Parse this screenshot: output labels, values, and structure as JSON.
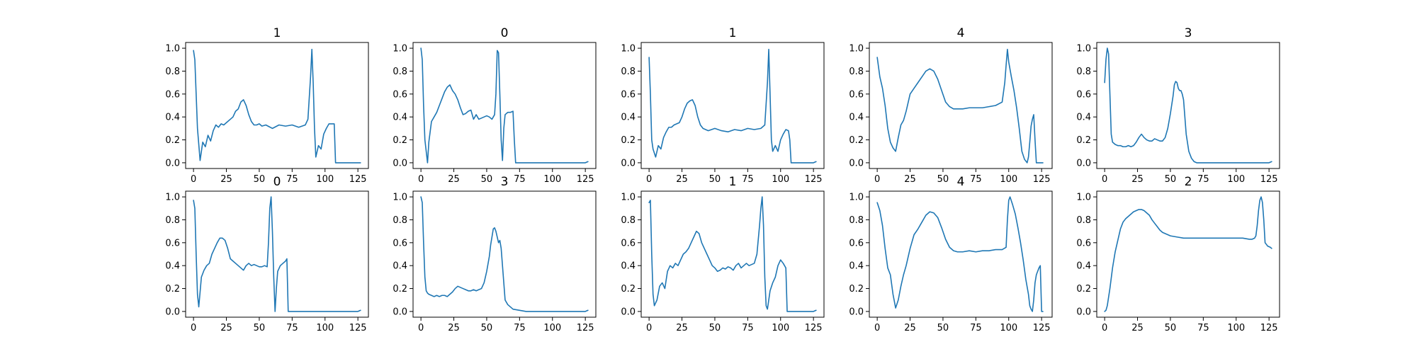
{
  "chart_data": {
    "type": "line",
    "grid": false,
    "line_color": "#1f77b4",
    "xlim": [
      -6,
      133
    ],
    "ylim": [
      -0.05,
      1.05
    ],
    "x_ticks": [
      0,
      25,
      50,
      75,
      100,
      125
    ],
    "y_ticks": [
      0.0,
      0.2,
      0.4,
      0.6,
      0.8,
      1.0
    ],
    "x_tick_labels": [
      "0",
      "25",
      "50",
      "75",
      "100",
      "125"
    ],
    "y_tick_labels": [
      "0.0",
      "0.2",
      "0.4",
      "0.6",
      "0.8",
      "1.0"
    ],
    "panels": [
      {
        "title": "1",
        "x": [
          0,
          1,
          3,
          5,
          7,
          9,
          11,
          13,
          15,
          17,
          19,
          21,
          23,
          25,
          28,
          30,
          32,
          34,
          36,
          38,
          40,
          42,
          44,
          46,
          48,
          50,
          52,
          55,
          60,
          65,
          70,
          75,
          80,
          85,
          87,
          89,
          90,
          91,
          92,
          93,
          95,
          97,
          99,
          101,
          103,
          105,
          107,
          108,
          110,
          115,
          120,
          125,
          127
        ],
        "y": [
          0.98,
          0.9,
          0.3,
          0.02,
          0.18,
          0.14,
          0.24,
          0.19,
          0.28,
          0.33,
          0.31,
          0.34,
          0.33,
          0.35,
          0.38,
          0.4,
          0.45,
          0.47,
          0.53,
          0.55,
          0.5,
          0.42,
          0.36,
          0.33,
          0.33,
          0.34,
          0.32,
          0.33,
          0.3,
          0.33,
          0.32,
          0.33,
          0.31,
          0.33,
          0.38,
          0.75,
          0.99,
          0.7,
          0.3,
          0.05,
          0.15,
          0.12,
          0.25,
          0.3,
          0.34,
          0.34,
          0.34,
          0.0,
          0.0,
          0.0,
          0.0,
          0.0,
          0.0
        ]
      },
      {
        "title": "0",
        "x": [
          0,
          1,
          2,
          3,
          5,
          6,
          8,
          10,
          12,
          14,
          16,
          18,
          20,
          22,
          24,
          26,
          28,
          30,
          32,
          34,
          36,
          38,
          40,
          42,
          44,
          46,
          48,
          50,
          52,
          54,
          56,
          57,
          58,
          59,
          60,
          61,
          62,
          63,
          64,
          66,
          68,
          70,
          71,
          72,
          75,
          80,
          90,
          100,
          110,
          120,
          125,
          127
        ],
        "y": [
          1.0,
          0.9,
          0.5,
          0.2,
          0.0,
          0.18,
          0.36,
          0.4,
          0.44,
          0.5,
          0.56,
          0.62,
          0.66,
          0.68,
          0.63,
          0.6,
          0.55,
          0.48,
          0.42,
          0.43,
          0.45,
          0.46,
          0.38,
          0.42,
          0.38,
          0.39,
          0.4,
          0.41,
          0.4,
          0.38,
          0.42,
          0.6,
          0.98,
          0.96,
          0.6,
          0.2,
          0.02,
          0.3,
          0.42,
          0.44,
          0.44,
          0.45,
          0.2,
          0.0,
          0.0,
          0.0,
          0.0,
          0.0,
          0.0,
          0.0,
          0.0,
          0.01
        ]
      },
      {
        "title": "1",
        "x": [
          0,
          1,
          2,
          3,
          5,
          7,
          9,
          11,
          13,
          15,
          17,
          19,
          21,
          23,
          25,
          27,
          29,
          31,
          33,
          35,
          37,
          39,
          41,
          43,
          45,
          50,
          55,
          60,
          65,
          70,
          75,
          80,
          85,
          88,
          90,
          91,
          92,
          93,
          94,
          96,
          98,
          100,
          102,
          104,
          106,
          107,
          108,
          110,
          115,
          120,
          125,
          127
        ],
        "y": [
          0.92,
          0.6,
          0.2,
          0.12,
          0.05,
          0.15,
          0.12,
          0.22,
          0.27,
          0.31,
          0.31,
          0.33,
          0.34,
          0.35,
          0.4,
          0.47,
          0.52,
          0.54,
          0.55,
          0.5,
          0.4,
          0.33,
          0.3,
          0.29,
          0.28,
          0.3,
          0.28,
          0.27,
          0.29,
          0.28,
          0.3,
          0.29,
          0.3,
          0.33,
          0.7,
          0.99,
          0.6,
          0.2,
          0.1,
          0.15,
          0.1,
          0.2,
          0.25,
          0.29,
          0.28,
          0.2,
          0.0,
          0.0,
          0.0,
          0.0,
          0.0,
          0.01
        ]
      },
      {
        "title": "4",
        "x": [
          0,
          2,
          4,
          6,
          8,
          10,
          12,
          14,
          16,
          18,
          20,
          22,
          25,
          28,
          31,
          34,
          37,
          40,
          43,
          46,
          49,
          52,
          55,
          58,
          61,
          65,
          70,
          75,
          80,
          85,
          90,
          95,
          97,
          98,
          99,
          100,
          102,
          104,
          106,
          108,
          110,
          112,
          114,
          115,
          116,
          117,
          118,
          119,
          120,
          121,
          122,
          123,
          124,
          125,
          126
        ],
        "y": [
          0.92,
          0.75,
          0.65,
          0.5,
          0.3,
          0.18,
          0.13,
          0.1,
          0.22,
          0.33,
          0.37,
          0.45,
          0.6,
          0.65,
          0.7,
          0.75,
          0.8,
          0.82,
          0.8,
          0.73,
          0.63,
          0.53,
          0.49,
          0.47,
          0.47,
          0.47,
          0.48,
          0.48,
          0.48,
          0.49,
          0.5,
          0.53,
          0.7,
          0.85,
          0.99,
          0.88,
          0.75,
          0.63,
          0.48,
          0.3,
          0.1,
          0.03,
          0.0,
          0.05,
          0.18,
          0.32,
          0.38,
          0.42,
          0.2,
          0.0,
          0.0,
          0.0,
          0.0,
          0.0,
          0.0
        ]
      },
      {
        "title": "3",
        "x": [
          0,
          1,
          2,
          3,
          4,
          5,
          6,
          8,
          10,
          12,
          14,
          16,
          18,
          20,
          22,
          24,
          26,
          28,
          30,
          32,
          34,
          36,
          38,
          40,
          42,
          44,
          46,
          48,
          50,
          52,
          53,
          54,
          55,
          56,
          57,
          58,
          59,
          60,
          61,
          62,
          64,
          66,
          68,
          70,
          75,
          80,
          90,
          100,
          110,
          120,
          125,
          127
        ],
        "y": [
          0.7,
          0.9,
          1.0,
          0.95,
          0.6,
          0.25,
          0.18,
          0.16,
          0.15,
          0.15,
          0.14,
          0.14,
          0.15,
          0.14,
          0.15,
          0.18,
          0.22,
          0.25,
          0.22,
          0.2,
          0.19,
          0.19,
          0.21,
          0.2,
          0.19,
          0.19,
          0.22,
          0.3,
          0.43,
          0.58,
          0.68,
          0.71,
          0.7,
          0.65,
          0.63,
          0.63,
          0.6,
          0.55,
          0.4,
          0.25,
          0.1,
          0.04,
          0.01,
          0.0,
          0.0,
          0.0,
          0.0,
          0.0,
          0.0,
          0.0,
          0.0,
          0.01
        ]
      },
      {
        "title": "0",
        "x": [
          0,
          1,
          2,
          3,
          4,
          6,
          8,
          10,
          12,
          14,
          16,
          18,
          20,
          22,
          24,
          26,
          28,
          30,
          32,
          34,
          36,
          38,
          40,
          42,
          44,
          46,
          48,
          50,
          52,
          54,
          56,
          57,
          58,
          59,
          60,
          61,
          62,
          63,
          64,
          66,
          68,
          70,
          71,
          72,
          75,
          80,
          90,
          100,
          110,
          120,
          125,
          127
        ],
        "y": [
          0.97,
          0.9,
          0.5,
          0.15,
          0.04,
          0.3,
          0.36,
          0.4,
          0.42,
          0.5,
          0.55,
          0.6,
          0.64,
          0.64,
          0.62,
          0.55,
          0.46,
          0.44,
          0.42,
          0.4,
          0.38,
          0.36,
          0.4,
          0.42,
          0.4,
          0.41,
          0.4,
          0.39,
          0.39,
          0.4,
          0.39,
          0.6,
          0.9,
          1.0,
          0.7,
          0.3,
          0.0,
          0.2,
          0.35,
          0.4,
          0.42,
          0.44,
          0.46,
          0.0,
          0.0,
          0.0,
          0.0,
          0.0,
          0.0,
          0.0,
          0.0,
          0.01
        ]
      },
      {
        "title": "3",
        "x": [
          0,
          1,
          2,
          3,
          4,
          5,
          6,
          8,
          10,
          12,
          14,
          16,
          18,
          20,
          22,
          24,
          26,
          28,
          30,
          32,
          34,
          36,
          38,
          40,
          42,
          44,
          46,
          48,
          50,
          52,
          53,
          54,
          55,
          56,
          57,
          58,
          59,
          60,
          61,
          62,
          64,
          66,
          68,
          70,
          75,
          80,
          90,
          100,
          110,
          120,
          125,
          127
        ],
        "y": [
          1.0,
          0.95,
          0.6,
          0.3,
          0.18,
          0.16,
          0.15,
          0.14,
          0.13,
          0.14,
          0.13,
          0.14,
          0.14,
          0.13,
          0.15,
          0.17,
          0.2,
          0.22,
          0.21,
          0.2,
          0.19,
          0.18,
          0.18,
          0.19,
          0.18,
          0.19,
          0.2,
          0.25,
          0.35,
          0.48,
          0.58,
          0.65,
          0.72,
          0.73,
          0.7,
          0.65,
          0.6,
          0.62,
          0.55,
          0.4,
          0.1,
          0.06,
          0.04,
          0.02,
          0.01,
          0.0,
          0.0,
          0.0,
          0.0,
          0.0,
          0.0,
          0.01
        ]
      },
      {
        "title": "1",
        "x": [
          0,
          1,
          2,
          3,
          4,
          6,
          8,
          10,
          12,
          14,
          16,
          18,
          20,
          22,
          24,
          26,
          28,
          30,
          32,
          34,
          36,
          38,
          40,
          42,
          44,
          46,
          48,
          50,
          52,
          54,
          56,
          58,
          60,
          62,
          64,
          66,
          68,
          70,
          72,
          74,
          76,
          78,
          80,
          82,
          84,
          85,
          86,
          87,
          88,
          89,
          90,
          91,
          92,
          94,
          96,
          98,
          100,
          102,
          104,
          105,
          106,
          110,
          115,
          120,
          125,
          127
        ],
        "y": [
          0.95,
          0.97,
          0.5,
          0.15,
          0.05,
          0.1,
          0.22,
          0.25,
          0.2,
          0.35,
          0.4,
          0.38,
          0.42,
          0.4,
          0.45,
          0.5,
          0.52,
          0.55,
          0.6,
          0.65,
          0.7,
          0.68,
          0.6,
          0.55,
          0.5,
          0.45,
          0.4,
          0.38,
          0.35,
          0.36,
          0.38,
          0.37,
          0.39,
          0.38,
          0.36,
          0.4,
          0.42,
          0.38,
          0.4,
          0.42,
          0.4,
          0.41,
          0.42,
          0.5,
          0.75,
          0.9,
          1.0,
          0.75,
          0.3,
          0.05,
          0.02,
          0.1,
          0.18,
          0.25,
          0.3,
          0.4,
          0.45,
          0.42,
          0.38,
          0.0,
          0.0,
          0.0,
          0.0,
          0.0,
          0.0,
          0.01
        ]
      },
      {
        "title": "4",
        "x": [
          0,
          2,
          4,
          6,
          8,
          10,
          12,
          14,
          16,
          18,
          20,
          22,
          25,
          28,
          31,
          34,
          37,
          40,
          43,
          46,
          49,
          52,
          55,
          58,
          61,
          65,
          70,
          75,
          80,
          85,
          90,
          95,
          98,
          99,
          100,
          101,
          103,
          105,
          107,
          109,
          111,
          113,
          115,
          116,
          117,
          118,
          119,
          120,
          121,
          122,
          123,
          124,
          125,
          126
        ],
        "y": [
          0.95,
          0.88,
          0.75,
          0.55,
          0.38,
          0.32,
          0.15,
          0.03,
          0.1,
          0.22,
          0.32,
          0.4,
          0.55,
          0.67,
          0.72,
          0.78,
          0.84,
          0.87,
          0.86,
          0.82,
          0.73,
          0.63,
          0.56,
          0.53,
          0.52,
          0.52,
          0.53,
          0.52,
          0.53,
          0.53,
          0.54,
          0.54,
          0.56,
          0.8,
          0.97,
          1.0,
          0.93,
          0.85,
          0.73,
          0.6,
          0.45,
          0.28,
          0.15,
          0.05,
          0.02,
          0.0,
          0.1,
          0.25,
          0.32,
          0.35,
          0.38,
          0.4,
          0.0,
          0.0
        ]
      },
      {
        "title": "2",
        "x": [
          0,
          1,
          2,
          4,
          6,
          8,
          10,
          12,
          14,
          16,
          18,
          20,
          22,
          24,
          26,
          28,
          30,
          32,
          34,
          36,
          38,
          40,
          42,
          44,
          46,
          48,
          50,
          55,
          60,
          65,
          70,
          75,
          80,
          85,
          90,
          95,
          100,
          105,
          110,
          112,
          114,
          115,
          116,
          117,
          118,
          119,
          120,
          121,
          122,
          124,
          126,
          127
        ],
        "y": [
          0.0,
          0.01,
          0.05,
          0.2,
          0.38,
          0.52,
          0.62,
          0.72,
          0.78,
          0.81,
          0.83,
          0.85,
          0.87,
          0.88,
          0.89,
          0.89,
          0.88,
          0.86,
          0.84,
          0.8,
          0.77,
          0.74,
          0.71,
          0.69,
          0.68,
          0.67,
          0.66,
          0.65,
          0.64,
          0.64,
          0.64,
          0.64,
          0.64,
          0.64,
          0.64,
          0.64,
          0.64,
          0.64,
          0.63,
          0.63,
          0.64,
          0.66,
          0.75,
          0.88,
          0.97,
          1.0,
          0.95,
          0.8,
          0.6,
          0.57,
          0.56,
          0.55
        ]
      }
    ]
  }
}
